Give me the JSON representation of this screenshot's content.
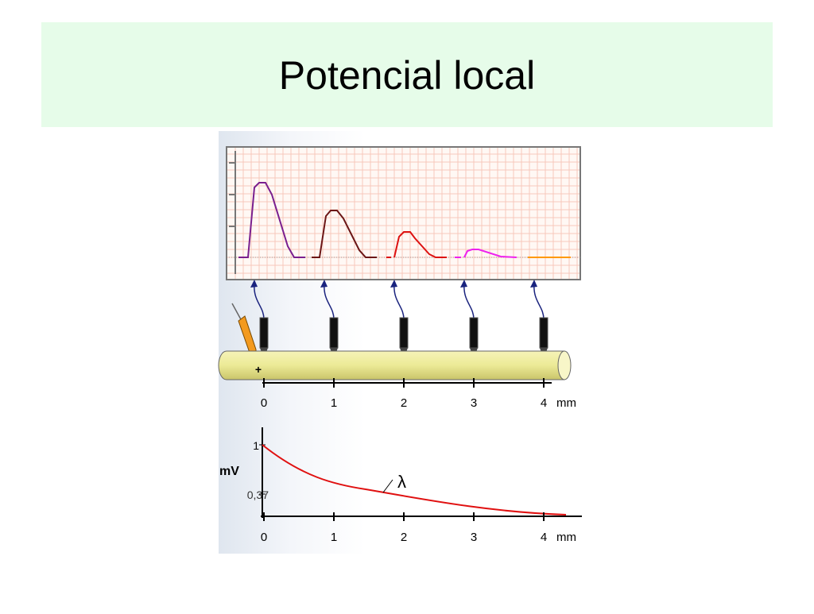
{
  "header": {
    "title": "Potencial local"
  },
  "axon_scale": {
    "ticks": [
      "0",
      "1",
      "2",
      "3",
      "4"
    ],
    "unit": "mm"
  },
  "polarity": "+",
  "decay_plot": {
    "y_label": "mV",
    "y_ticks": [
      "1",
      "0,37"
    ],
    "x_ticks": [
      "0",
      "1",
      "2",
      "3",
      "4"
    ],
    "x_unit": "mm",
    "curve_label": "λ"
  }
}
